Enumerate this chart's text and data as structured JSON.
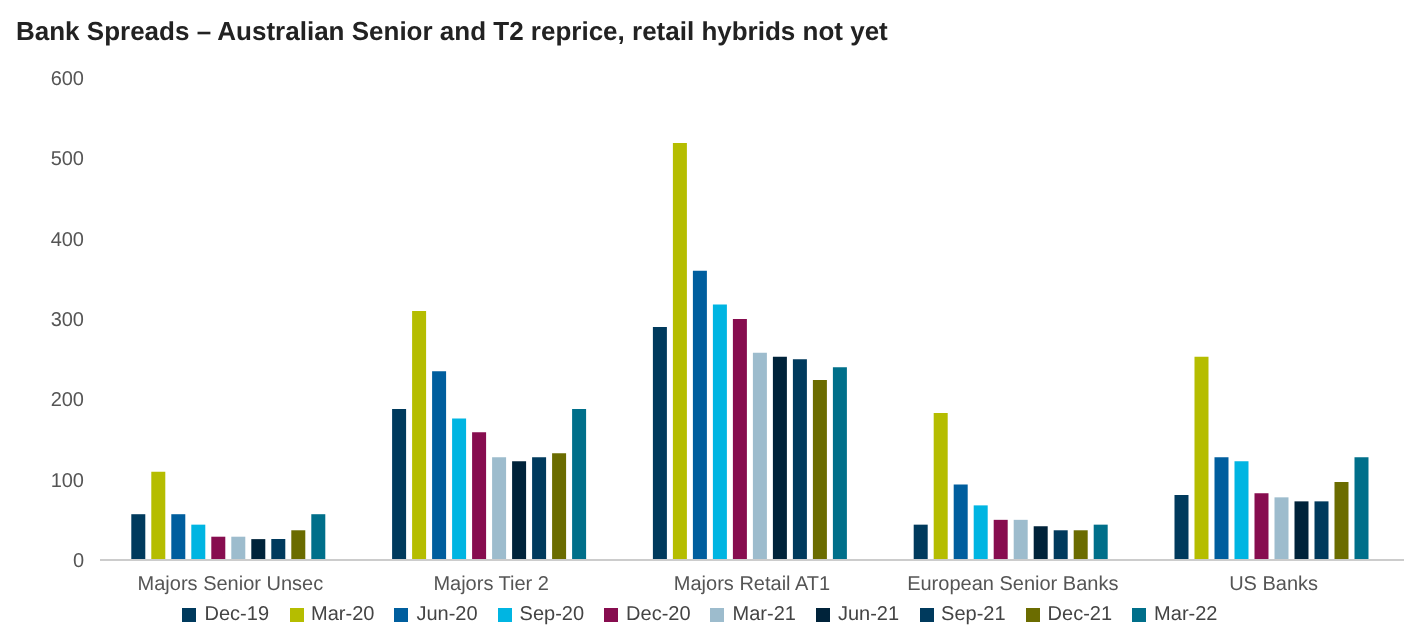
{
  "chart_data": {
    "type": "bar",
    "title": "Bank Spreads – Australian Senior and T2 reprice, retail hybrids not yet",
    "categories": [
      "Majors Senior Unsec",
      "Majors Tier 2",
      "Majors Retail AT1",
      "European Senior Banks",
      "US Banks"
    ],
    "series": [
      {
        "name": "Dec-19",
        "color": "#003a5d",
        "values": [
          57,
          188,
          290,
          44,
          81
        ]
      },
      {
        "name": "Mar-20",
        "color": "#b5bd00",
        "values": [
          110,
          310,
          519,
          183,
          253
        ]
      },
      {
        "name": "Jun-20",
        "color": "#005e9e",
        "values": [
          57,
          235,
          360,
          94,
          128
        ]
      },
      {
        "name": "Sep-20",
        "color": "#00b5e2",
        "values": [
          44,
          176,
          318,
          68,
          123
        ]
      },
      {
        "name": "Dec-20",
        "color": "#870d4f",
        "values": [
          29,
          159,
          300,
          50,
          83
        ]
      },
      {
        "name": "Mar-21",
        "color": "#9dbccd",
        "values": [
          29,
          128,
          258,
          50,
          78
        ]
      },
      {
        "name": "Jun-21",
        "color": "#00233a",
        "values": [
          26,
          123,
          253,
          42,
          73
        ]
      },
      {
        "name": "Sep-21",
        "color": "#003a5d",
        "values": [
          26,
          128,
          250,
          37,
          73
        ]
      },
      {
        "name": "Dec-21",
        "color": "#6b6c00",
        "values": [
          37,
          133,
          224,
          37,
          97
        ]
      },
      {
        "name": "Mar-22",
        "color": "#006f8a",
        "values": [
          57,
          188,
          240,
          44,
          128
        ]
      }
    ],
    "ylim": [
      0,
      600
    ],
    "yticks": [
      0,
      100,
      200,
      300,
      400,
      500,
      600
    ],
    "grid": false,
    "legend": "bottom"
  }
}
